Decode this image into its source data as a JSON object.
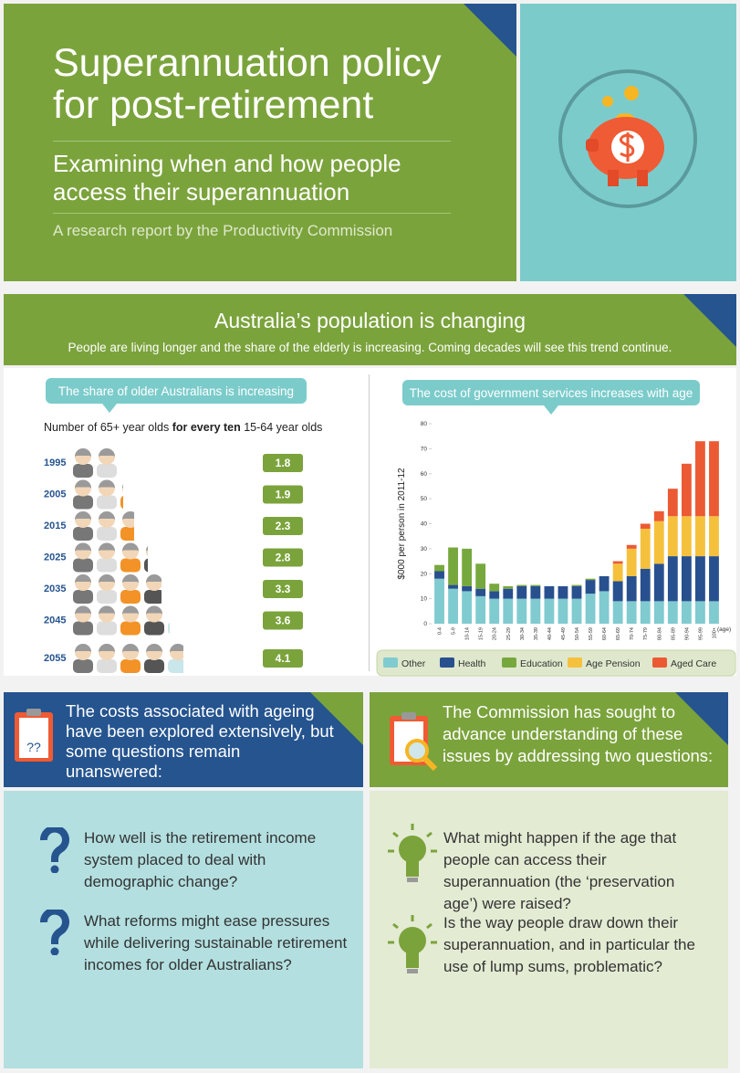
{
  "header": {
    "title": "Superannuation policy for post-retirement",
    "subtitle": "Examining when and how people access their superannuation",
    "byline": "A research report by the Productivity Commission"
  },
  "population_section": {
    "title": "Australia’s population is changing",
    "text": "People are living longer and the share of the elderly is increasing. Coming decades will see this trend continue."
  },
  "chart_data": [
    {
      "type": "pictograph",
      "title": "The share of older Australians is increasing",
      "note_before": "Number of 65+ year olds",
      "note_bold": "for every ten",
      "note_after": "15-64 year olds",
      "categories": [
        "1995",
        "2005",
        "2015",
        "2025",
        "2035",
        "2045",
        "2055"
      ],
      "values": [
        1.8,
        1.9,
        2.3,
        2.8,
        3.3,
        3.6,
        4.1
      ],
      "color": "#7ba33c"
    },
    {
      "type": "stacked-bar",
      "title": "The cost of government services increases with age",
      "ylabel": "$000 per person in 2011-12",
      "xlabel": "(age)",
      "categories": [
        "0-4",
        "5-9",
        "10-14",
        "15-19",
        "20-24",
        "25-29",
        "30-34",
        "35-39",
        "40-44",
        "45-49",
        "50-54",
        "55-59",
        "60-64",
        "65-69",
        "70-74",
        "75-79",
        "80-84",
        "85-89",
        "90-94",
        "95-99",
        "100+"
      ],
      "series": [
        {
          "name": "Other",
          "color": "#7fcbd0",
          "values": [
            18,
            14,
            13,
            11,
            10,
            10,
            10,
            10,
            10,
            10,
            10,
            12,
            13,
            9,
            9,
            9,
            9,
            9,
            9,
            9,
            9
          ]
        },
        {
          "name": "Health",
          "color": "#28508f",
          "values": [
            3,
            1.5,
            2,
            3,
            3,
            4,
            5,
            5,
            5,
            5,
            5,
            5.5,
            6,
            8,
            10,
            13,
            15,
            18,
            18,
            18,
            18
          ]
        },
        {
          "name": "Education",
          "color": "#77a83e",
          "values": [
            2.5,
            15,
            15,
            10,
            3,
            1,
            0.5,
            0.5,
            0,
            0,
            0.5,
            0.5,
            0,
            0,
            0,
            0,
            0,
            0,
            0,
            0,
            0
          ]
        },
        {
          "name": "Age Pension",
          "color": "#f5c13d",
          "values": [
            0,
            0,
            0,
            0,
            0,
            0,
            0,
            0,
            0,
            0,
            0,
            0,
            0,
            7,
            11,
            16,
            17,
            16,
            16,
            16,
            16
          ]
        },
        {
          "name": "Aged Care",
          "color": "#ec5a34",
          "values": [
            0,
            0,
            0,
            0,
            0,
            0,
            0,
            0,
            0,
            0,
            0,
            0,
            0,
            1,
            1.5,
            2,
            4,
            11,
            21,
            30,
            30
          ]
        }
      ],
      "ylim": [
        0,
        80
      ],
      "yticks": [
        0,
        10,
        20,
        30,
        40,
        50,
        60,
        70,
        80
      ]
    }
  ],
  "ageing_costs": {
    "heading": "The costs associated with ageing have been explored extensively, but some questions remain unanswered:",
    "icon_text": "??",
    "questions": [
      "How well is the retirement income system placed to deal with demographic change?",
      "What reforms might ease pressures while delivering sustainable retirement incomes for older Australians?"
    ]
  },
  "commission": {
    "heading": "The Commission has sought to advance understanding of these issues by addressing two questions:",
    "questions": [
      "What might happen if the age that people can access their superannuation (the ‘preservation age’) were raised?",
      "Is the way people draw down their superannuation, and in particular the use of lump sums, problematic?"
    ]
  }
}
